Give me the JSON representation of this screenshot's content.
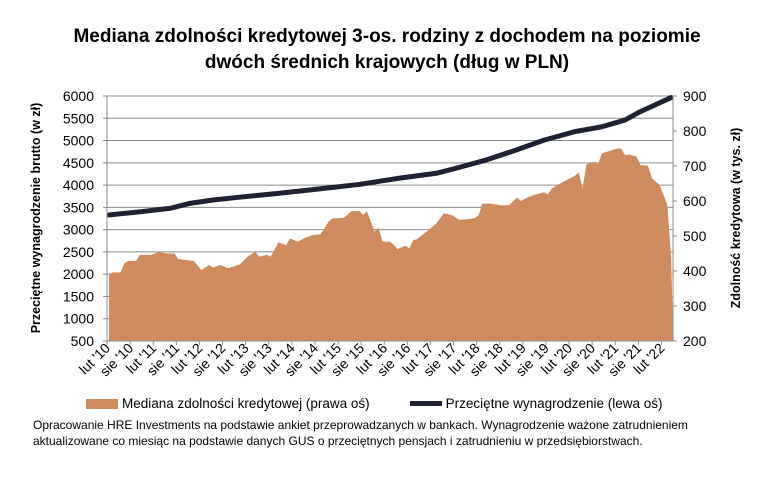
{
  "chart_data": {
    "type": "area+line",
    "title_line1": "Mediana zdolności kredytowej 3-os. rodziny z dochodem na poziomie",
    "title_line2": "dwóch średnich krajowych (dług w PLN)",
    "ylabel_left": "Przeciętne wynagrodzenie brutto (w zł)",
    "ylabel_right": "Zdolność kredytowa (w tys. zł)",
    "ylim_left": [
      500,
      6000
    ],
    "yticks_left": [
      "500",
      "1000",
      "1500",
      "2000",
      "2500",
      "3000",
      "3500",
      "4000",
      "4500",
      "5000",
      "5500",
      "6000"
    ],
    "ylim_right": [
      200,
      900
    ],
    "yticks_right": [
      "200",
      "300",
      "400",
      "500",
      "600",
      "700",
      "800",
      "900"
    ],
    "xticks": [
      "lut '10",
      "sie '10",
      "lut '11",
      "sie '11",
      "lut '12",
      "sie '12",
      "lut '13",
      "sie '13",
      "lut '14",
      "sie '14",
      "lut '15",
      "sie '15",
      "lut '16",
      "sie '16",
      "lut '17",
      "sie '17",
      "lut '18",
      "sie '18",
      "lut '19",
      "sie '19",
      "lut '20",
      "sie '20",
      "lut '21",
      "sie '21",
      "lut '22"
    ],
    "x_start": "2010-02",
    "grid": true,
    "legend_position": "bottom",
    "series": [
      {
        "name": "Mediana zdolności kredytowej (prawa oś)",
        "axis": "right",
        "kind": "area",
        "color": "#CD8B5E",
        "points": [
          [
            "2010-02",
            389
          ],
          [
            "2010-03",
            396
          ],
          [
            "2010-05",
            396
          ],
          [
            "2010-06",
            422
          ],
          [
            "2010-07",
            429
          ],
          [
            "2010-09",
            429
          ],
          [
            "2010-10",
            446
          ],
          [
            "2011-01",
            446
          ],
          [
            "2011-03",
            455
          ],
          [
            "2011-05",
            450
          ],
          [
            "2011-07",
            450
          ],
          [
            "2011-08",
            434
          ],
          [
            "2011-10",
            431
          ],
          [
            "2011-12",
            429
          ],
          [
            "2012-02",
            403
          ],
          [
            "2012-04",
            417
          ],
          [
            "2012-05",
            410
          ],
          [
            "2012-07",
            417
          ],
          [
            "2012-09",
            408
          ],
          [
            "2012-12",
            419
          ],
          [
            "2013-02",
            441
          ],
          [
            "2013-04",
            455
          ],
          [
            "2013-05",
            441
          ],
          [
            "2013-07",
            446
          ],
          [
            "2013-08",
            441
          ],
          [
            "2013-10",
            482
          ],
          [
            "2013-12",
            474
          ],
          [
            "2014-01",
            493
          ],
          [
            "2014-03",
            484
          ],
          [
            "2014-05",
            495
          ],
          [
            "2014-07",
            503
          ],
          [
            "2014-09",
            505
          ],
          [
            "2014-11",
            541
          ],
          [
            "2014-12",
            550
          ],
          [
            "2015-03",
            552
          ],
          [
            "2015-05",
            571
          ],
          [
            "2015-07",
            571
          ],
          [
            "2015-08",
            560
          ],
          [
            "2015-09",
            571
          ],
          [
            "2015-11",
            512
          ],
          [
            "2015-12",
            524
          ],
          [
            "2016-01",
            484
          ],
          [
            "2016-03",
            484
          ],
          [
            "2016-05",
            463
          ],
          [
            "2016-07",
            472
          ],
          [
            "2016-08",
            465
          ],
          [
            "2016-09",
            488
          ],
          [
            "2016-10",
            491
          ],
          [
            "2017-01",
            517
          ],
          [
            "2017-03",
            536
          ],
          [
            "2017-05",
            565
          ],
          [
            "2017-07",
            560
          ],
          [
            "2017-09",
            546
          ],
          [
            "2017-11",
            548
          ],
          [
            "2018-01",
            551
          ],
          [
            "2018-02",
            560
          ],
          [
            "2018-03",
            593
          ],
          [
            "2018-05",
            593
          ],
          [
            "2018-08",
            587
          ],
          [
            "2018-10",
            589
          ],
          [
            "2018-12",
            610
          ],
          [
            "2019-01",
            600
          ],
          [
            "2019-03",
            612
          ],
          [
            "2019-05",
            619
          ],
          [
            "2019-07",
            625
          ],
          [
            "2019-08",
            619
          ],
          [
            "2019-09",
            636
          ],
          [
            "2019-12",
            655
          ],
          [
            "2020-03",
            672
          ],
          [
            "2020-04",
            682
          ],
          [
            "2020-05",
            636
          ],
          [
            "2020-06",
            705
          ],
          [
            "2020-08",
            712
          ],
          [
            "2020-09",
            705
          ],
          [
            "2020-10",
            736
          ],
          [
            "2021-02",
            750
          ],
          [
            "2021-03",
            750
          ],
          [
            "2021-04",
            731
          ],
          [
            "2021-05",
            733
          ],
          [
            "2021-07",
            727
          ],
          [
            "2021-08",
            703
          ],
          [
            "2021-10",
            701
          ],
          [
            "2021-11",
            665
          ],
          [
            "2022-01",
            646
          ],
          [
            "2022-03",
            589
          ],
          [
            "2022-04",
            440
          ]
        ]
      },
      {
        "name": "Przeciętne wynagrodzenie (lewa oś)",
        "axis": "left",
        "kind": "line",
        "color": "#1F2235",
        "points": [
          [
            "2010-02",
            3330
          ],
          [
            "2010-10",
            3400
          ],
          [
            "2011-06",
            3480
          ],
          [
            "2011-11",
            3590
          ],
          [
            "2012-05",
            3665
          ],
          [
            "2012-11",
            3720
          ],
          [
            "2013-10",
            3815
          ],
          [
            "2014-06",
            3890
          ],
          [
            "2015-07",
            4015
          ],
          [
            "2016-05",
            4150
          ],
          [
            "2017-03",
            4265
          ],
          [
            "2017-08",
            4375
          ],
          [
            "2018-04",
            4565
          ],
          [
            "2018-11",
            4765
          ],
          [
            "2019-07",
            5010
          ],
          [
            "2020-03",
            5200
          ],
          [
            "2020-10",
            5310
          ],
          [
            "2021-04",
            5460
          ],
          [
            "2021-08",
            5650
          ],
          [
            "2022-04",
            5965
          ]
        ]
      }
    ]
  },
  "note": "Opracowanie HRE Investments na podstawie ankiet przeprowadzanych w bankach. Wynagrodzenie ważone zatrudnieniem aktualizowane co miesiąc na podstawie danych GUS o przeciętnych pensjach i zatrudnieniu w przedsiębiorstwach."
}
